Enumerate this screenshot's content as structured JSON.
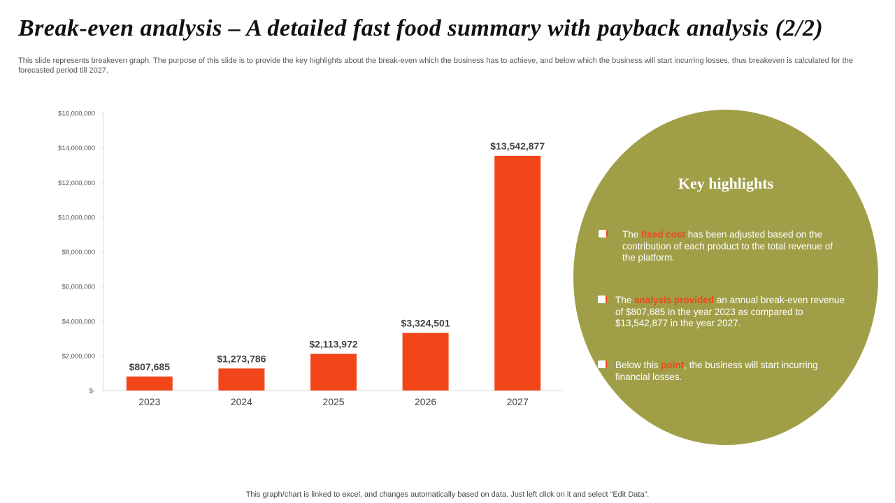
{
  "title": "Break-even analysis – A detailed fast food summary with payback analysis (2/2)",
  "description": "This slide represents breakeven graph. The purpose of this slide is to provide the key highlights about the break-even which the business has to achieve, and below which the business will start incurring losses, thus breakeven is calculated for the forecasted period till 2027.",
  "chart_data": {
    "type": "bar",
    "categories": [
      "2023",
      "2024",
      "2025",
      "2026",
      "2027"
    ],
    "values": [
      807685,
      1273786,
      2113972,
      3324501,
      13542877
    ],
    "value_labels": [
      "$807,685",
      "$1,273,786",
      "$2,113,972",
      "$3,324,501",
      "$13,542,877"
    ],
    "color": "#f2461a",
    "ylim": [
      0,
      16000000
    ],
    "yticks": [
      {
        "value": 0,
        "label": "$-"
      },
      {
        "value": 2000000,
        "label": "$2,000,000"
      },
      {
        "value": 4000000,
        "label": "$4,000,000"
      },
      {
        "value": 6000000,
        "label": "$6,000,000"
      },
      {
        "value": 8000000,
        "label": "$8,000,000"
      },
      {
        "value": 10000000,
        "label": "$10,000,000"
      },
      {
        "value": 12000000,
        "label": "$12,000,000"
      },
      {
        "value": 14000000,
        "label": "$14,000,000"
      },
      {
        "value": 16000000,
        "label": "$16,000,000"
      }
    ],
    "grid": false
  },
  "highlights": {
    "title": "Key highlights",
    "highlight_color": "#f2461a",
    "bullets": [
      {
        "before": "The ",
        "highlight": "fixed cost",
        "after": " has been adjusted based on the contribution of each product to the total revenue of the platform."
      },
      {
        "before": "The ",
        "highlight": "analysis provided",
        "after": " an annual break-even revenue of $807,685 in the year 2023 as compared to $13,542,877 in the year 2027."
      },
      {
        "before": "Below this ",
        "highlight": "point",
        "after": ", the business will start incurring financial losses."
      }
    ]
  },
  "footer": "This graph/chart is linked to excel, and changes automatically based on data. Just left click on it and select “Edit Data”."
}
